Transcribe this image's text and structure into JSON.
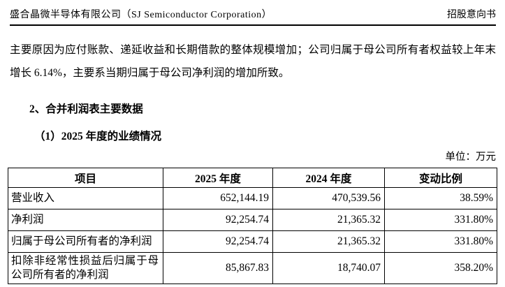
{
  "header": {
    "company": "盛合晶微半导体有限公司（SJ Semiconductor Corporation）",
    "doc_type": "招股意向书"
  },
  "paragraph": "主要原因为应付账款、递延收益和长期借款的整体规模增加；公司归属于母公司所有者权益较上年末增长 6.14%，主要系当期归属于母公司净利润的增加所致。",
  "section_heading": "2、合并利润表主要数据",
  "subsection_heading": "（1）2025 年度的业绩情况",
  "unit_label": "单位：万元",
  "table": {
    "headers": [
      "项目",
      "2025 年度",
      "2024 年度",
      "变动比例"
    ],
    "rows": [
      {
        "item": "营业收入",
        "y2025": "652,144.19",
        "y2024": "470,539.56",
        "change": "38.59%"
      },
      {
        "item": "净利润",
        "y2025": "92,254.74",
        "y2024": "21,365.32",
        "change": "331.80%"
      },
      {
        "item": "归属于母公司所有者的净利润",
        "y2025": "92,254.74",
        "y2024": "21,365.32",
        "change": "331.80%"
      },
      {
        "item": "扣除非经常性损益后归属于母公司所有者的净利润",
        "y2025": "85,867.83",
        "y2024": "18,740.07",
        "change": "358.20%"
      }
    ]
  }
}
